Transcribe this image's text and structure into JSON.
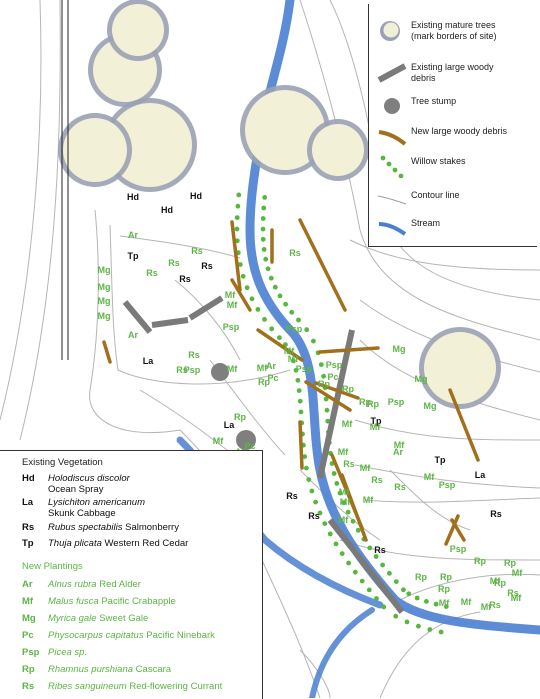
{
  "legend": {
    "items": [
      {
        "key": "mature-trees",
        "icon": "mature-tree-icon",
        "label": "Existing mature trees\n(mark borders of site)"
      },
      {
        "key": "existing-debris",
        "icon": "existing-woody-debris-icon",
        "label": "Existing large woody\ndebris"
      },
      {
        "key": "stump",
        "icon": "tree-stump-icon",
        "label": "Tree stump"
      },
      {
        "key": "new-debris",
        "icon": "new-woody-debris-icon",
        "label": "New large woody debris"
      },
      {
        "key": "willow",
        "icon": "willow-stakes-icon",
        "label": "Willow stakes"
      },
      {
        "key": "contour",
        "icon": "contour-line-icon",
        "label": "Contour line"
      },
      {
        "key": "stream",
        "icon": "stream-icon",
        "label": "Stream"
      }
    ]
  },
  "existing_vegetation": {
    "title": "Existing Vegetation",
    "items": [
      {
        "code": "Hd",
        "latin": "Holodiscus discolor",
        "common": "Ocean Spray",
        "layout": "two-line"
      },
      {
        "code": "La",
        "latin": "Lysichiton americanum",
        "common": "Skunk Cabbage",
        "layout": "two-line"
      },
      {
        "code": "Rs",
        "latin": "Rubus spectabilis",
        "common": "Salmonberry",
        "layout": "one-line"
      },
      {
        "code": "Tp",
        "latin": "Thuja plicata",
        "common": "Western Red Cedar",
        "layout": "one-line"
      }
    ]
  },
  "new_plantings": {
    "title": "New Plantings",
    "items": [
      {
        "code": "Ar",
        "latin": "Alnus rubra",
        "common": "Red Alder"
      },
      {
        "code": "Mf",
        "latin": "Malus fusca",
        "common": "Pacific Crabapple"
      },
      {
        "code": "Mg",
        "latin": "Myrica gale",
        "common": "Sweet Gale"
      },
      {
        "code": "Pc",
        "latin": "Physocarpus capitatus",
        "common": "Pacific Ninebark"
      },
      {
        "code": "Psp",
        "latin": "Picea sp.",
        "common": ""
      },
      {
        "code": "Rp",
        "latin": "Rhamnus purshiana",
        "common": "Cascara"
      },
      {
        "code": "Rs",
        "latin": "Ribes sanguineum",
        "common": "Red-flowering Currant"
      }
    ]
  },
  "colors": {
    "stream": "#4a7fd0",
    "new_debris": "#a0701c",
    "existing_debris": "#7a7a7a",
    "willow": "#55b83d",
    "planting_label": "#5cb544",
    "existing_label": "#111111",
    "tree_canopy": "#f2f0d6",
    "contour": "#b5b5b5"
  },
  "map_labels": {
    "existing": [
      {
        "t": "Hd"
      },
      {
        "t": "Hd"
      },
      {
        "t": "Hd"
      },
      {
        "t": "Tp"
      },
      {
        "t": "Rs"
      },
      {
        "t": "Rs"
      },
      {
        "t": "La"
      },
      {
        "t": "La"
      },
      {
        "t": "Tp"
      },
      {
        "t": "Tp"
      },
      {
        "t": "La"
      },
      {
        "t": "Rs"
      },
      {
        "t": "Rs"
      },
      {
        "t": "Rs"
      },
      {
        "t": "Rs"
      }
    ],
    "planted": [
      {
        "t": "Ar"
      },
      {
        "t": "Mg"
      },
      {
        "t": "Mg"
      },
      {
        "t": "Mg"
      },
      {
        "t": "Mg"
      },
      {
        "t": "Rs"
      },
      {
        "t": "Rs"
      },
      {
        "t": "Rs"
      },
      {
        "t": "Ar"
      },
      {
        "t": "Rs"
      },
      {
        "t": "Psp"
      },
      {
        "t": "Rs"
      },
      {
        "t": "Mf"
      },
      {
        "t": "Rs"
      },
      {
        "t": "Psp"
      },
      {
        "t": "Mf"
      },
      {
        "t": "Mf"
      },
      {
        "t": "Mf"
      },
      {
        "t": "Mf"
      },
      {
        "t": "Psp"
      },
      {
        "t": "Mf"
      },
      {
        "t": "Rp"
      },
      {
        "t": "Ar"
      },
      {
        "t": "Pc"
      },
      {
        "t": "Rp"
      },
      {
        "t": "Psp"
      },
      {
        "t": "Psp"
      },
      {
        "t": "Pc"
      },
      {
        "t": "Rp"
      },
      {
        "t": "Rp"
      },
      {
        "t": "Rp"
      },
      {
        "t": "Rp"
      },
      {
        "t": "Pc"
      },
      {
        "t": "Mf"
      },
      {
        "t": "Mf"
      },
      {
        "t": "Mg"
      },
      {
        "t": "Mg"
      },
      {
        "t": "Mg"
      },
      {
        "t": "Psp"
      },
      {
        "t": "Mf"
      },
      {
        "t": "Mf"
      },
      {
        "t": "Ar"
      },
      {
        "t": "Rs"
      },
      {
        "t": "Mf"
      },
      {
        "t": "Mf"
      },
      {
        "t": "Mf"
      },
      {
        "t": "Rs"
      },
      {
        "t": "Mf"
      },
      {
        "t": "Mf"
      },
      {
        "t": "Mf"
      },
      {
        "t": "Mf"
      },
      {
        "t": "Rs"
      },
      {
        "t": "Mf"
      },
      {
        "t": "Psp"
      },
      {
        "t": "Psp"
      },
      {
        "t": "Rp"
      },
      {
        "t": "Rp"
      },
      {
        "t": "Mf"
      },
      {
        "t": "Rp"
      },
      {
        "t": "Rp"
      },
      {
        "t": "Mf"
      },
      {
        "t": "Mf"
      },
      {
        "t": "Mf"
      },
      {
        "t": "Mf"
      },
      {
        "t": "Mf"
      },
      {
        "t": "Rs"
      },
      {
        "t": "Rs"
      },
      {
        "t": "Rp"
      },
      {
        "t": "Rp"
      }
    ]
  }
}
